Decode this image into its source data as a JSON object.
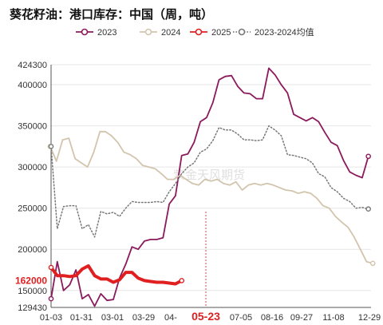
{
  "chart_data": {
    "type": "line",
    "title": "葵花籽油：港口库存：中国（周，吨）",
    "legend": {
      "placement": "top-right",
      "items": [
        "2023",
        "2024",
        "2025",
        "2023-2024均值"
      ]
    },
    "colors": {
      "2023": "#8b1a5c",
      "2024": "#d2c4ad",
      "2025": "#e02020",
      "2023-2024均值": "#777777"
    },
    "y_range": [
      129430,
      424300
    ],
    "y_ticks": [
      "424300",
      "400000",
      "350000",
      "300000",
      "250000",
      "200000",
      "162000",
      "150000",
      "129430"
    ],
    "x_ticks": [
      "01-03",
      "01-31",
      "03-01",
      "03-29",
      "04-",
      "05-23",
      "07-05",
      "08-16",
      "09-27",
      "11-08",
      "12-29"
    ],
    "x_range": [
      "01-03",
      "12-29"
    ],
    "watermark": "紫金天风期货",
    "highlight": {
      "x_label": "05-23",
      "y_label": "162000"
    },
    "grid": "horizontal",
    "series": [
      {
        "name": "2023",
        "style": "solid",
        "x": [
          "01-03",
          "01-10",
          "01-17",
          "01-24",
          "01-31",
          "02-07",
          "02-14",
          "02-21",
          "02-28",
          "03-07",
          "03-14",
          "03-21",
          "03-28",
          "04-04",
          "04-11",
          "04-18",
          "04-25",
          "05-02",
          "05-09",
          "05-16",
          "05-23",
          "05-30",
          "06-06",
          "06-13",
          "06-20",
          "06-27",
          "07-04",
          "07-11",
          "07-18",
          "07-25",
          "08-01",
          "08-08",
          "08-15",
          "08-22",
          "08-29",
          "09-05",
          "09-12",
          "09-19",
          "09-26",
          "10-03",
          "10-10",
          "10-17",
          "10-24",
          "10-31",
          "11-07",
          "11-14",
          "11-21",
          "11-28",
          "12-05",
          "12-12",
          "12-19",
          "12-26"
        ],
        "y": [
          140000,
          185000,
          150000,
          157000,
          175000,
          140000,
          145000,
          131000,
          146000,
          138000,
          139000,
          165000,
          182000,
          203000,
          200000,
          210000,
          212000,
          212000,
          214000,
          255000,
          265000,
          314000,
          316000,
          330000,
          355000,
          360000,
          378000,
          406000,
          410000,
          411000,
          398000,
          390000,
          389000,
          383000,
          383000,
          420000,
          412000,
          400000,
          390000,
          364000,
          360000,
          356000,
          360000,
          355000,
          342000,
          330000,
          326000,
          308000,
          294000,
          290000,
          287000,
          313000
        ]
      },
      {
        "name": "2024",
        "style": "solid",
        "x": [
          "01-02",
          "01-09",
          "01-16",
          "01-23",
          "01-30",
          "02-06",
          "02-13",
          "02-20",
          "02-27",
          "03-05",
          "03-12",
          "03-19",
          "03-26",
          "04-02",
          "04-09",
          "04-16",
          "04-23",
          "04-30",
          "05-07",
          "05-14",
          "05-21",
          "05-28",
          "06-04",
          "06-11",
          "06-18",
          "06-25",
          "07-02",
          "07-09",
          "07-16",
          "07-23",
          "07-30",
          "08-06",
          "08-13",
          "08-20",
          "08-27",
          "09-03",
          "09-10",
          "09-17",
          "09-24",
          "10-01",
          "10-08",
          "10-15",
          "10-22",
          "10-29",
          "11-05",
          "11-12",
          "11-19",
          "11-26",
          "12-03",
          "12-10",
          "12-17",
          "12-24",
          "12-31"
        ],
        "y": [
          325000,
          307000,
          333000,
          335000,
          310000,
          305000,
          300000,
          318000,
          343000,
          343000,
          338000,
          330000,
          318000,
          315000,
          310000,
          302000,
          300000,
          298000,
          292000,
          285000,
          285000,
          290000,
          285000,
          280000,
          278000,
          285000,
          283000,
          285000,
          280000,
          278000,
          282000,
          272000,
          278000,
          280000,
          278000,
          280000,
          278000,
          275000,
          272000,
          271000,
          268000,
          270000,
          268000,
          262000,
          253000,
          250000,
          240000,
          233000,
          227000,
          215000,
          200000,
          185000,
          183000
        ]
      },
      {
        "name": "2025",
        "style": "solid",
        "x": [
          "01-03",
          "01-10",
          "01-17",
          "01-24",
          "01-31",
          "02-07",
          "02-14",
          "02-21",
          "02-28",
          "03-07",
          "03-14",
          "03-21",
          "03-28",
          "04-04",
          "04-11",
          "04-18",
          "04-25",
          "05-02",
          "05-09",
          "05-16",
          "05-23",
          "05-30"
        ],
        "y": [
          178000,
          168000,
          168000,
          167000,
          168000,
          176000,
          180000,
          168000,
          164000,
          164000,
          160000,
          163000,
          172000,
          172000,
          165000,
          162000,
          161000,
          160000,
          160000,
          159000,
          158000,
          162000
        ]
      },
      {
        "name": "2023-2024均值",
        "style": "dotted",
        "x": [
          "01-03",
          "01-10",
          "01-17",
          "01-24",
          "01-31",
          "02-07",
          "02-14",
          "02-21",
          "02-28",
          "03-07",
          "03-14",
          "03-21",
          "03-28",
          "04-04",
          "04-11",
          "04-18",
          "04-25",
          "05-02",
          "05-09",
          "05-16",
          "05-23",
          "05-30",
          "06-06",
          "06-13",
          "06-20",
          "06-27",
          "07-04",
          "07-11",
          "07-18",
          "07-25",
          "08-01",
          "08-08",
          "08-15",
          "08-22",
          "08-29",
          "09-05",
          "09-12",
          "09-19",
          "09-26",
          "10-03",
          "10-10",
          "10-17",
          "10-24",
          "10-31",
          "11-07",
          "11-14",
          "11-21",
          "11-28",
          "12-05",
          "12-12",
          "12-19",
          "12-26"
        ],
        "y": [
          325000,
          225000,
          252000,
          253000,
          253000,
          225000,
          230000,
          215000,
          246000,
          243000,
          245000,
          240000,
          250000,
          258000,
          257000,
          257000,
          257000,
          258000,
          257000,
          270000,
          280000,
          292000,
          300000,
          305000,
          318000,
          322000,
          332000,
          348000,
          345000,
          345000,
          340000,
          333000,
          333000,
          332000,
          333000,
          350000,
          345000,
          338000,
          315000,
          314000,
          312000,
          310000,
          305000,
          292000,
          288000,
          275000,
          270000,
          262000,
          258000,
          250000,
          251000,
          249000
        ]
      }
    ]
  }
}
